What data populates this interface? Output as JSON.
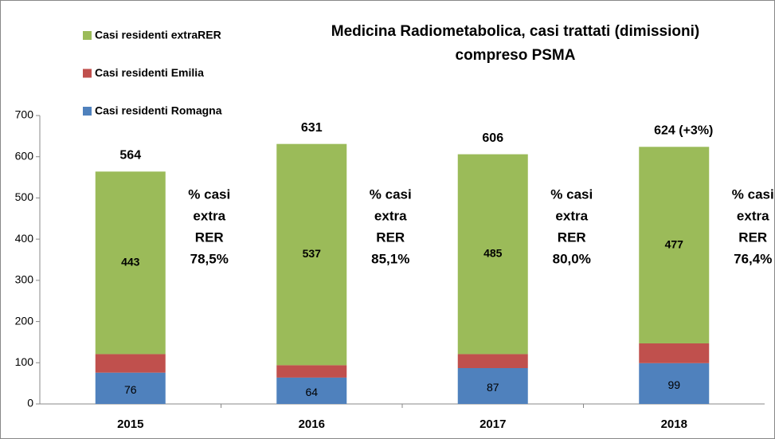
{
  "chart_data": {
    "type": "stacked_bar",
    "title": [
      "Medicina Radiometabolica, casi trattati (dimissioni)",
      "compreso PSMA"
    ],
    "categories": [
      "2015",
      "2016",
      "2017",
      "2018"
    ],
    "series": [
      {
        "name": "Casi residenti Romagna",
        "color": "#4f81bd",
        "values": [
          76,
          64,
          87,
          99
        ],
        "show_labels": true
      },
      {
        "name": "Casi residenti Emilia",
        "color": "#c0504d",
        "values": [
          45,
          30,
          34,
          48
        ],
        "show_labels": false
      },
      {
        "name": "Casi residenti extraRER",
        "color": "#9bbb59",
        "values": [
          443,
          537,
          485,
          477
        ],
        "show_labels": true
      }
    ],
    "total_labels": [
      "564",
      "631",
      "606",
      "624 (+3%)"
    ],
    "side_labels": [
      [
        "% casi",
        "extra",
        "RER",
        "78,5%"
      ],
      [
        "% casi",
        "extra",
        "RER",
        "85,1%"
      ],
      [
        "% casi",
        "extra",
        "RER",
        "80,0%"
      ],
      [
        "% casi",
        "extra",
        "RER",
        "76,4%"
      ]
    ],
    "ylim": [
      0,
      700
    ],
    "yticks": [
      0,
      100,
      200,
      300,
      400,
      500,
      600,
      700
    ],
    "grid": false
  }
}
